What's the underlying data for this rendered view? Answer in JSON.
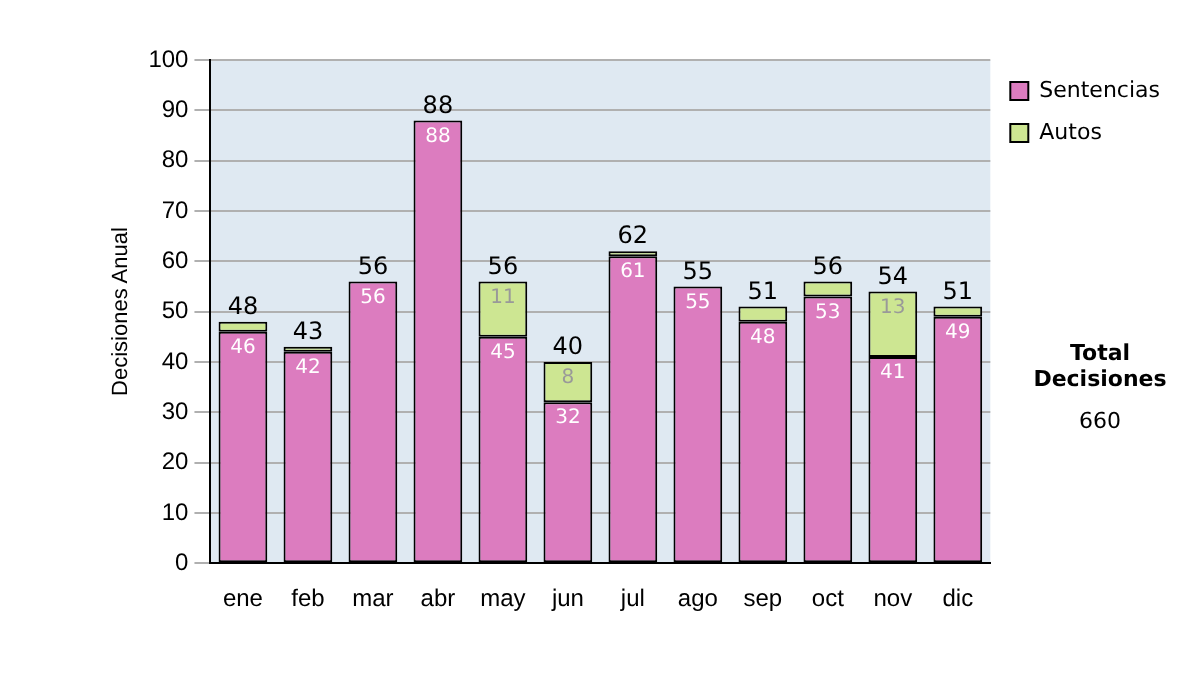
{
  "chart_data": {
    "type": "bar",
    "stacked": true,
    "ylabel": "Decisiones Anual",
    "categories": [
      "ene",
      "feb",
      "mar",
      "abr",
      "may",
      "jun",
      "jul",
      "ago",
      "sep",
      "oct",
      "nov",
      "dic"
    ],
    "series": [
      {
        "name": "Sentencias",
        "color": "#dc7cbf",
        "values": [
          46,
          42,
          56,
          88,
          45,
          32,
          61,
          55,
          48,
          53,
          41,
          49
        ],
        "value_labels": [
          "46",
          "42",
          "56",
          "88",
          "45",
          "32",
          "61",
          "55",
          "48",
          "53",
          "41",
          "49"
        ]
      },
      {
        "name": "Autos",
        "color": "#cde692",
        "values": [
          2,
          1,
          0,
          0,
          11,
          8,
          1,
          0,
          3,
          3,
          13,
          2
        ],
        "value_labels": [
          null,
          null,
          null,
          null,
          "11",
          "8",
          null,
          null,
          null,
          null,
          "13",
          null
        ]
      }
    ],
    "totals": [
      "48",
      "43",
      "56",
      "88",
      "56",
      "40",
      "62",
      "55",
      "51",
      "56",
      "54",
      "51"
    ],
    "ylim": [
      0,
      100
    ],
    "yticks": [
      0,
      10,
      20,
      30,
      40,
      50,
      60,
      70,
      80,
      90,
      100
    ],
    "grid": "y",
    "legend": "right",
    "annotations": [
      "Total Decisiones",
      "660"
    ]
  }
}
